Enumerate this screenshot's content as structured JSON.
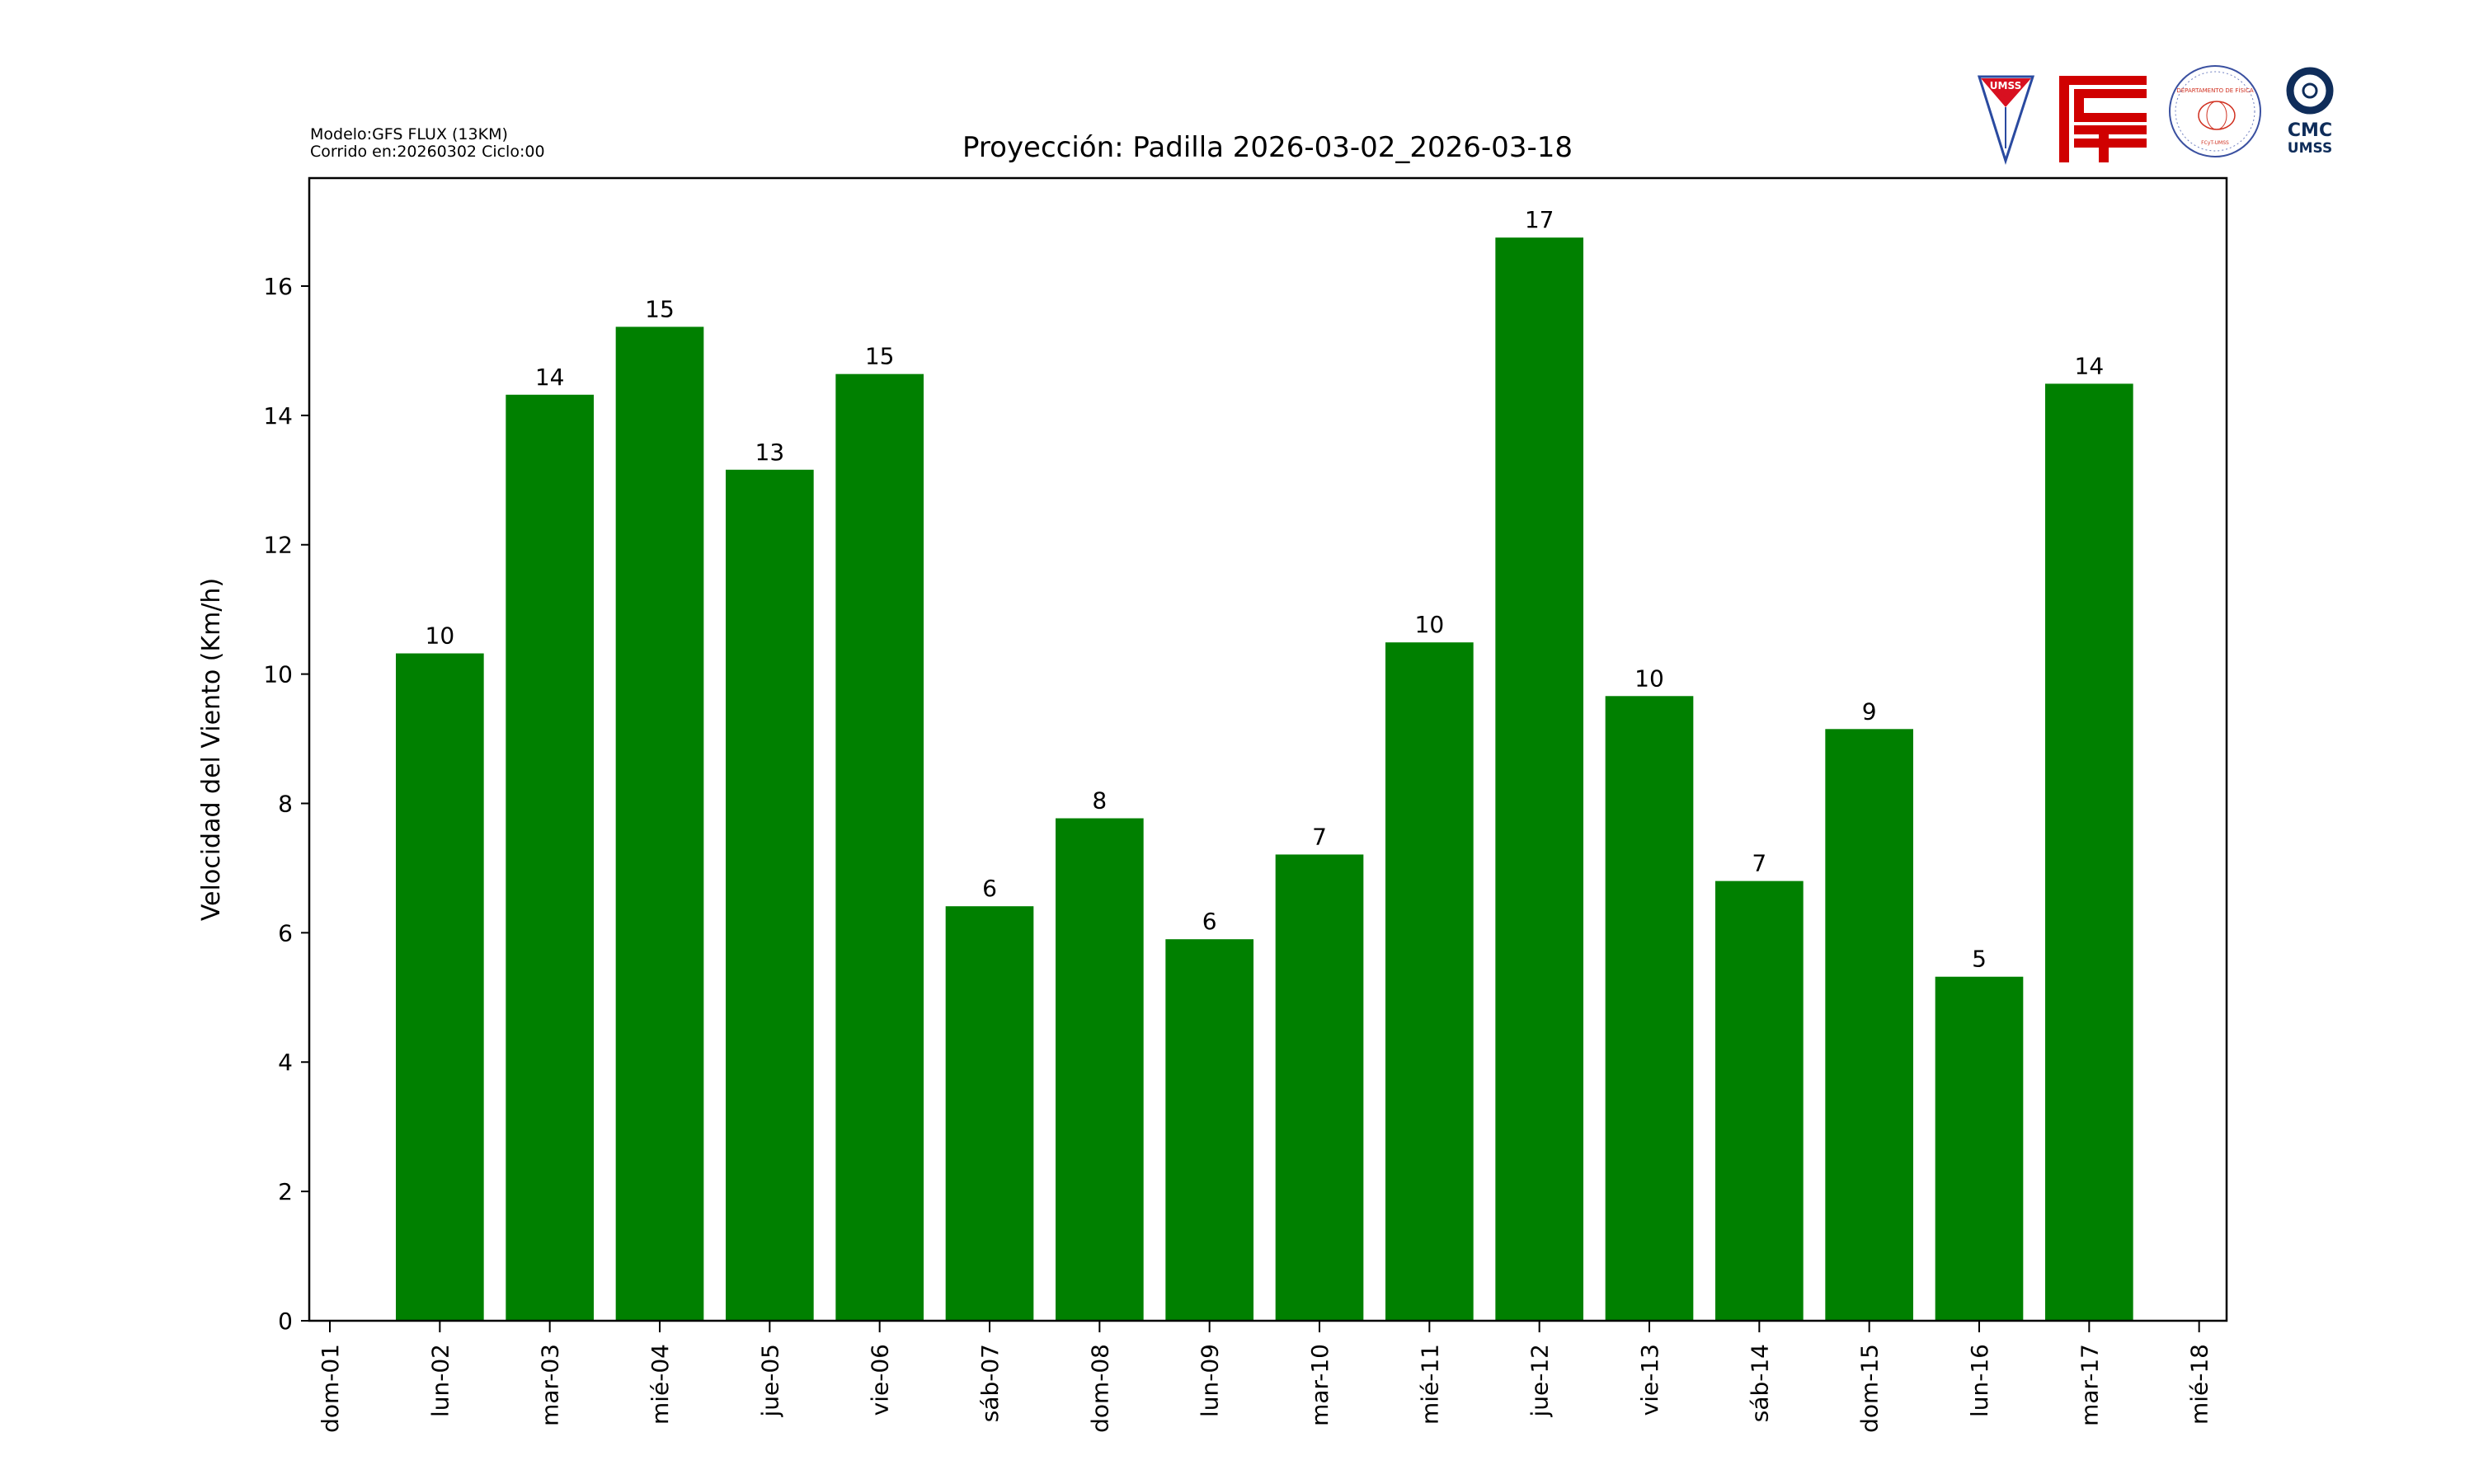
{
  "header": {
    "model_line": "Modelo:GFS FLUX (13KM)",
    "run_line": "Corrido en:20260302 Ciclo:00"
  },
  "logos": {
    "umss_shield": "UMSS",
    "fcyt": "FCyT",
    "dept_fisica": "DEPARTAMENTO DE FÍSICA",
    "dept_fisica_sub": "FCyT-UMSS",
    "cmc_top": "CMC",
    "cmc_bottom": "UMSS"
  },
  "chart_data": {
    "type": "bar",
    "title": "Proyección: Padilla  2026-03-02_2026-03-18",
    "xlabel": "",
    "ylabel": "Velocidad del Viento (Km/h)",
    "ylim": [
      0,
      17.67
    ],
    "yticks": [
      0,
      2,
      4,
      6,
      8,
      10,
      12,
      14,
      16
    ],
    "xticks": [
      "dom-01",
      "lun-02",
      "mar-03",
      "mié-04",
      "jue-05",
      "vie-06",
      "sáb-07",
      "dom-08",
      "lun-09",
      "mar-10",
      "mié-11",
      "jue-12",
      "vie-13",
      "sáb-14",
      "dom-15",
      "lun-16",
      "mar-17",
      "mié-18"
    ],
    "xlim_days": [
      0.8125,
      18.25
    ],
    "bar_width_days": 0.8,
    "grid": false,
    "color": "#008000",
    "categories": [
      "lun-02",
      "mar-03",
      "mié-04",
      "jue-05",
      "vie-06",
      "sáb-07",
      "dom-08",
      "lun-09",
      "mar-10",
      "mié-11",
      "jue-12",
      "vie-13",
      "sáb-14",
      "dom-15",
      "lun-16",
      "mar-17"
    ],
    "days": [
      2,
      3,
      4,
      5,
      6,
      7,
      8,
      9,
      10,
      11,
      12,
      13,
      14,
      15,
      16,
      17
    ],
    "values": [
      10.32,
      14.32,
      15.37,
      13.16,
      14.64,
      6.41,
      7.77,
      5.9,
      7.21,
      10.49,
      16.75,
      9.66,
      6.8,
      9.15,
      5.32,
      14.49
    ],
    "data_labels": [
      "10",
      "14",
      "15",
      "13",
      "15",
      "6",
      "8",
      "6",
      "7",
      "10",
      "17",
      "10",
      "7",
      "9",
      "5",
      "14"
    ]
  }
}
